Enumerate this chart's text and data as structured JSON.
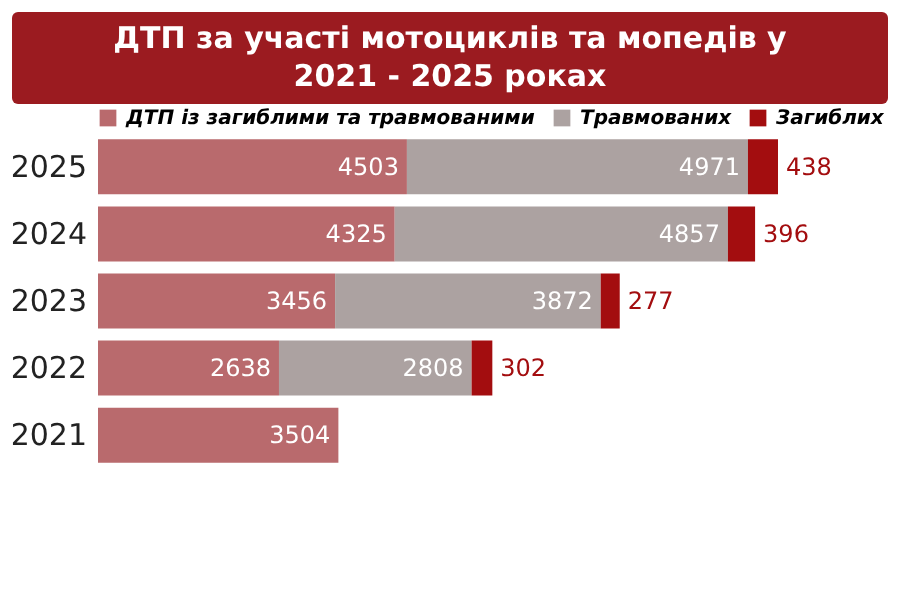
{
  "chart_data": {
    "type": "bar",
    "title": "ДТП за участі мотоциклів та мопедів у 2021 - 2025 роках",
    "orientation": "horizontal",
    "stacked": true,
    "data_labels": true,
    "tick_labels": "y",
    "legend": "top",
    "categories": [
      "2025",
      "2024",
      "2023",
      "2022",
      "2021"
    ],
    "series": [
      {
        "name": "ДТП із загиблими та травмованими",
        "color": "#b96a6d",
        "values": [
          4503,
          4325,
          3456,
          2638,
          3504
        ]
      },
      {
        "name": "Травмованих",
        "color": "#aca2a1",
        "values": [
          4971,
          4857,
          3872,
          2808,
          null
        ]
      },
      {
        "name": "Загиблих",
        "color": "#a30d0f",
        "values": [
          438,
          396,
          277,
          302,
          null
        ]
      }
    ]
  }
}
